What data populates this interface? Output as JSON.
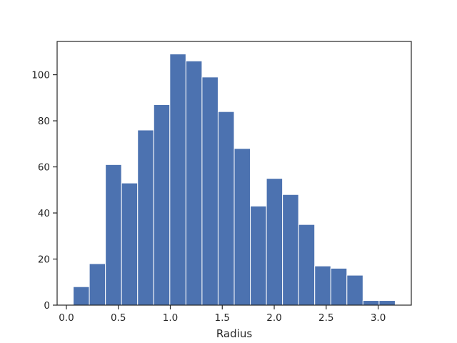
{
  "chart_data": {
    "type": "bar",
    "bin_edges": [
      0.066,
      0.2209,
      0.3758,
      0.5307,
      0.6856,
      0.8405,
      0.9954,
      1.1503,
      1.3052,
      1.4601,
      1.615,
      1.7699,
      1.9248,
      2.0797,
      2.2346,
      2.3895,
      2.5444,
      2.6993,
      2.8542,
      3.0091,
      3.164
    ],
    "values": [
      8,
      18,
      61,
      53,
      76,
      87,
      109,
      106,
      99,
      84,
      68,
      43,
      55,
      48,
      35,
      17,
      16,
      13,
      2,
      2
    ],
    "xlabel": "Radius",
    "ylabel": "",
    "xlim": [
      -0.089,
      3.319
    ],
    "ylim": [
      0,
      114.45
    ],
    "xticks": [
      0.0,
      0.5,
      1.0,
      1.5,
      2.0,
      2.5,
      3.0
    ],
    "xtick_labels": [
      "0.0",
      "0.5",
      "1.0",
      "1.5",
      "2.0",
      "2.5",
      "3.0"
    ],
    "yticks": [
      0,
      20,
      40,
      60,
      80,
      100
    ],
    "ytick_labels": [
      "0",
      "20",
      "40",
      "60",
      "80",
      "100"
    ],
    "bar_color": "#4c72b0",
    "grid": false,
    "legend": "none"
  }
}
